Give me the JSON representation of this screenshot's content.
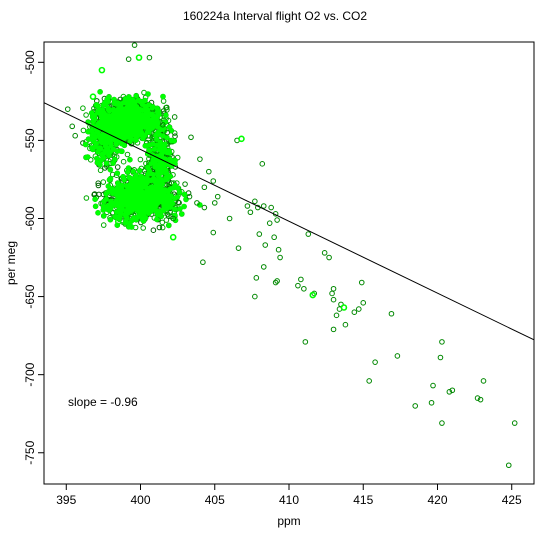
{
  "chart_data": {
    "type": "scatter",
    "title": "160224a   Interval flight O2 vs. CO2",
    "xlabel": "ppm",
    "ylabel": "per meg",
    "xlim": [
      393.5,
      426.5
    ],
    "ylim": [
      -770,
      -487
    ],
    "xticks": [
      395,
      400,
      405,
      410,
      415,
      420,
      425
    ],
    "yticks": [
      -500,
      -550,
      -600,
      -650,
      -700,
      -750
    ],
    "grid": false,
    "marker_color": "#00aa00",
    "highlight_color": "#00ff00",
    "cluster": {
      "description_free": true,
      "bounds": {
        "x": [
          395.2,
          402.6
        ],
        "y": [
          -614,
          -510
        ]
      }
    },
    "regression_line": {
      "x": [
        393.5,
        426.5
      ],
      "y": [
        -525.9,
        -677.7
      ]
    },
    "annotation": "slope =  -0.96",
    "scattered_points": [
      {
        "x": 401.5,
        "y": -540
      },
      {
        "x": 402.3,
        "y": -535
      },
      {
        "x": 401.8,
        "y": -545
      },
      {
        "x": 402.2,
        "y": -600
      },
      {
        "x": 402.6,
        "y": -590
      },
      {
        "x": 403.0,
        "y": -578
      },
      {
        "x": 403.3,
        "y": -586
      },
      {
        "x": 403.8,
        "y": -590
      },
      {
        "x": 404.0,
        "y": -562
      },
      {
        "x": 404.3,
        "y": -580
      },
      {
        "x": 404.6,
        "y": -570
      },
      {
        "x": 404.3,
        "y": -593
      },
      {
        "x": 404.9,
        "y": -576
      },
      {
        "x": 405.2,
        "y": -586
      },
      {
        "x": 405.0,
        "y": -590
      },
      {
        "x": 404.2,
        "y": -628
      },
      {
        "x": 404.9,
        "y": -609
      },
      {
        "x": 406.0,
        "y": -600
      },
      {
        "x": 406.6,
        "y": -619
      },
      {
        "x": 406.5,
        "y": -550
      },
      {
        "x": 407.2,
        "y": -592
      },
      {
        "x": 407.4,
        "y": -596
      },
      {
        "x": 407.7,
        "y": -589
      },
      {
        "x": 407.9,
        "y": -593
      },
      {
        "x": 408.2,
        "y": -565
      },
      {
        "x": 408.0,
        "y": -610
      },
      {
        "x": 408.3,
        "y": -592
      },
      {
        "x": 408.4,
        "y": -617
      },
      {
        "x": 408.7,
        "y": -603
      },
      {
        "x": 408.8,
        "y": -593
      },
      {
        "x": 409.2,
        "y": -601
      },
      {
        "x": 409.1,
        "y": -597
      },
      {
        "x": 409.0,
        "y": -612
      },
      {
        "x": 409.3,
        "y": -620
      },
      {
        "x": 409.4,
        "y": -625
      },
      {
        "x": 408.3,
        "y": -631
      },
      {
        "x": 407.8,
        "y": -638
      },
      {
        "x": 407.7,
        "y": -650
      },
      {
        "x": 409.1,
        "y": -641
      },
      {
        "x": 409.2,
        "y": -640
      },
      {
        "x": 410.6,
        "y": -643
      },
      {
        "x": 410.8,
        "y": -639
      },
      {
        "x": 411.0,
        "y": -645
      },
      {
        "x": 411.3,
        "y": -610
      },
      {
        "x": 411.7,
        "y": -648
      },
      {
        "x": 412.4,
        "y": -622
      },
      {
        "x": 412.7,
        "y": -625
      },
      {
        "x": 412.9,
        "y": -648
      },
      {
        "x": 413.0,
        "y": -652
      },
      {
        "x": 413.0,
        "y": -645
      },
      {
        "x": 413.2,
        "y": -662
      },
      {
        "x": 413.4,
        "y": -658
      },
      {
        "x": 413.5,
        "y": -655
      },
      {
        "x": 413.0,
        "y": -671
      },
      {
        "x": 413.8,
        "y": -668
      },
      {
        "x": 414.4,
        "y": -660
      },
      {
        "x": 414.7,
        "y": -658
      },
      {
        "x": 415.0,
        "y": -654
      },
      {
        "x": 414.9,
        "y": -641
      },
      {
        "x": 411.1,
        "y": -679
      },
      {
        "x": 415.4,
        "y": -704
      },
      {
        "x": 415.8,
        "y": -692
      },
      {
        "x": 416.9,
        "y": -661
      },
      {
        "x": 417.3,
        "y": -688
      },
      {
        "x": 418.5,
        "y": -720
      },
      {
        "x": 419.6,
        "y": -718
      },
      {
        "x": 419.7,
        "y": -707
      },
      {
        "x": 420.2,
        "y": -689
      },
      {
        "x": 420.3,
        "y": -679
      },
      {
        "x": 420.3,
        "y": -731
      },
      {
        "x": 420.8,
        "y": -711
      },
      {
        "x": 421.0,
        "y": -710
      },
      {
        "x": 422.7,
        "y": -715
      },
      {
        "x": 422.9,
        "y": -716
      },
      {
        "x": 423.1,
        "y": -704
      },
      {
        "x": 424.8,
        "y": -758
      },
      {
        "x": 425.2,
        "y": -731
      },
      {
        "x": 399.6,
        "y": -489
      },
      {
        "x": 399.2,
        "y": -498
      },
      {
        "x": 400.6,
        "y": -497
      },
      {
        "x": 395.1,
        "y": -530
      },
      {
        "x": 395.4,
        "y": -541
      },
      {
        "x": 395.6,
        "y": -547
      },
      {
        "x": 403.4,
        "y": -548
      }
    ],
    "highlighted_points": [
      {
        "x": 399.9,
        "y": -497
      },
      {
        "x": 397.4,
        "y": -505
      },
      {
        "x": 406.8,
        "y": -549
      },
      {
        "x": 411.6,
        "y": -649
      },
      {
        "x": 413.7,
        "y": -657
      },
      {
        "x": 396.8,
        "y": -522
      },
      {
        "x": 398.5,
        "y": -602
      },
      {
        "x": 402.2,
        "y": -612
      }
    ]
  }
}
